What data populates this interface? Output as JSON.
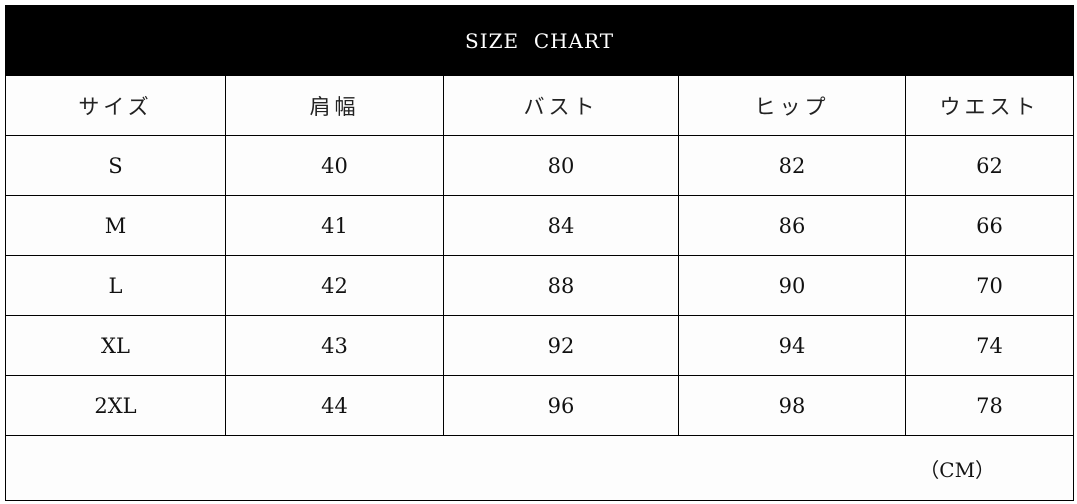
{
  "title": "SIZE  CHART",
  "columns": [
    "サイズ",
    "肩幅",
    "バスト",
    "ヒップ",
    "ウエスト"
  ],
  "rows": [
    [
      "S",
      "40",
      "80",
      "82",
      "62"
    ],
    [
      "M",
      "41",
      "84",
      "86",
      "66"
    ],
    [
      "L",
      "42",
      "88",
      "90",
      "70"
    ],
    [
      "XL",
      "43",
      "92",
      "94",
      "74"
    ],
    [
      "2XL",
      "44",
      "96",
      "98",
      "78"
    ]
  ],
  "unit": "（CM）"
}
